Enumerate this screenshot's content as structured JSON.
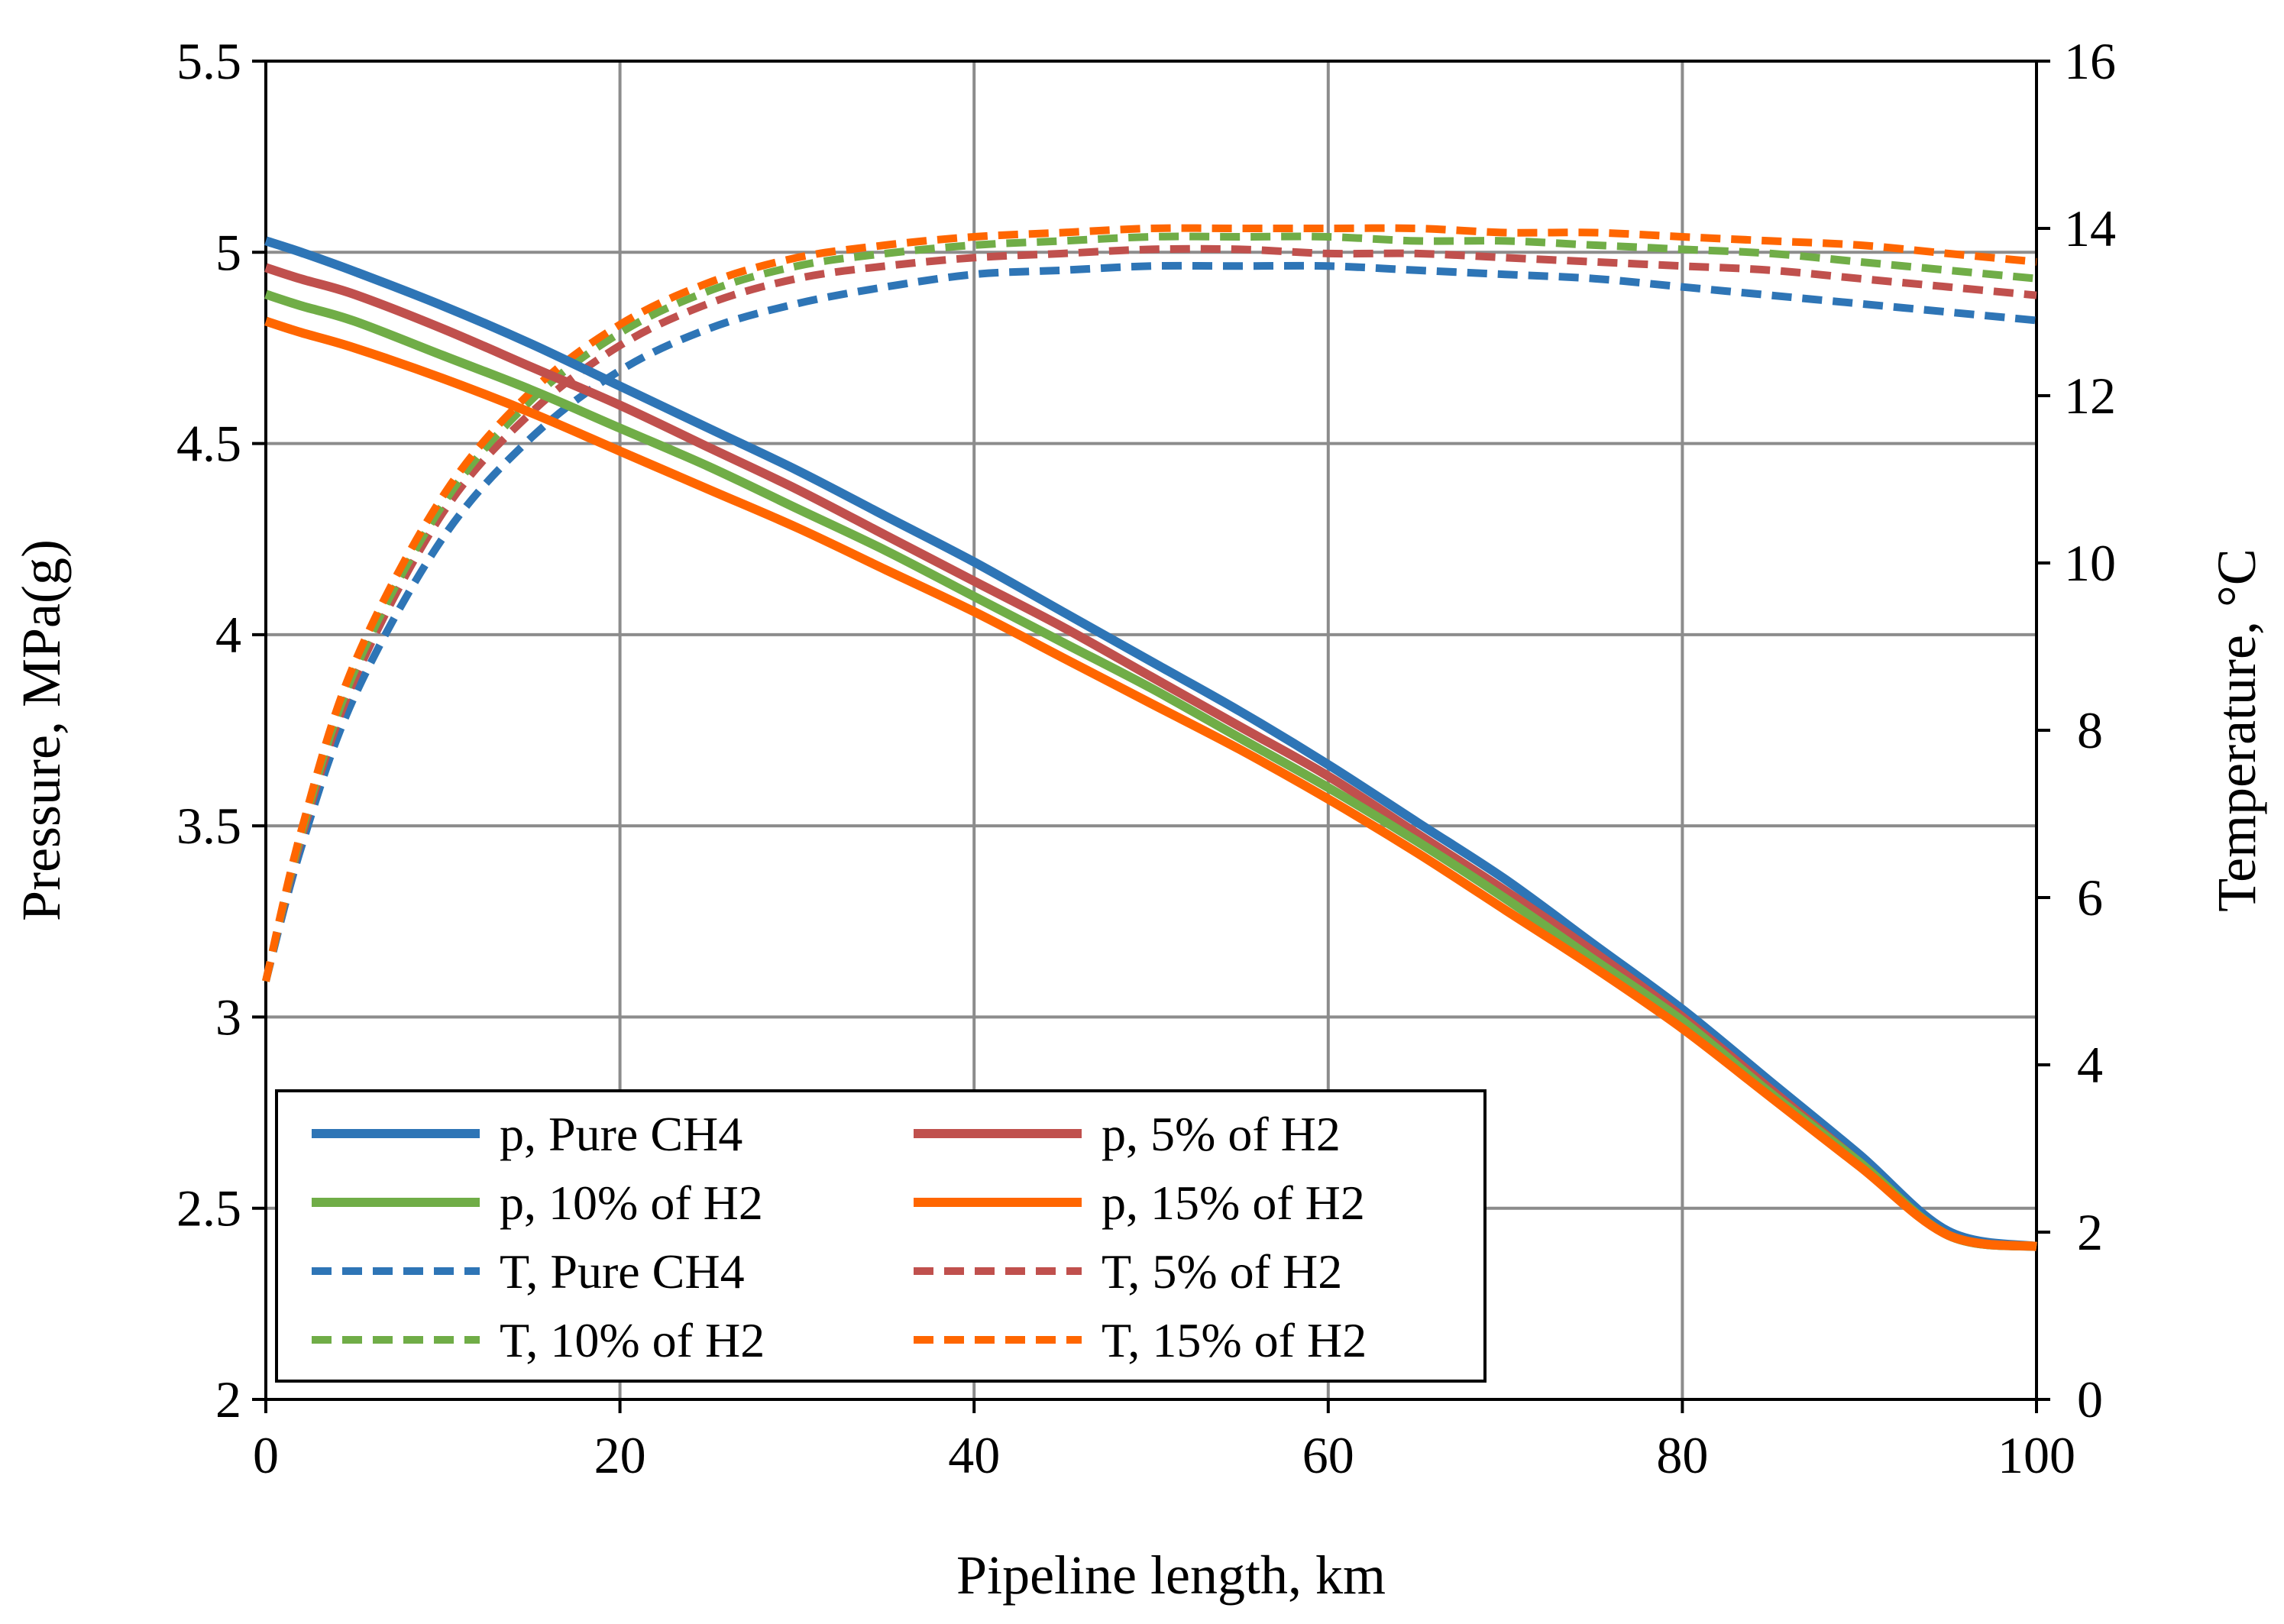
{
  "chart_data": {
    "type": "line",
    "title": "",
    "xlabel": "Pipeline length, km",
    "ylabel": "Pressure, MPa(g)",
    "y2label": "Temperature, °C",
    "xlim": [
      0,
      100
    ],
    "ylim": [
      2,
      5.5
    ],
    "y2lim": [
      0,
      16
    ],
    "grid": true,
    "legend_position": "bottom-left",
    "x_ticks": [
      "0",
      "20",
      "40",
      "60",
      "80",
      "100"
    ],
    "y_ticks": [
      "2",
      "2.5",
      "3",
      "3.5",
      "4",
      "4.5",
      "5",
      "5.5"
    ],
    "y2_ticks": [
      "0",
      "2",
      "4",
      "6",
      "8",
      "10",
      "12",
      "14",
      "16"
    ],
    "x": [
      0,
      2,
      5,
      10,
      15,
      20,
      25,
      30,
      35,
      40,
      45,
      50,
      55,
      60,
      65,
      70,
      75,
      80,
      85,
      90,
      95,
      100
    ],
    "series": [
      {
        "name": "p, Pure CH4",
        "axis": "left",
        "style": "solid",
        "color": "#2e75b6",
        "values": [
          5.03,
          5.0,
          4.95,
          4.86,
          4.76,
          4.65,
          4.54,
          4.43,
          4.31,
          4.19,
          4.06,
          3.93,
          3.8,
          3.66,
          3.51,
          3.36,
          3.19,
          3.02,
          2.83,
          2.64,
          2.44,
          2.4
        ]
      },
      {
        "name": "p, 5% of H2",
        "axis": "left",
        "style": "solid",
        "color": "#c0504d",
        "values": [
          4.96,
          4.93,
          4.89,
          4.8,
          4.7,
          4.6,
          4.49,
          4.38,
          4.26,
          4.14,
          4.02,
          3.89,
          3.76,
          3.63,
          3.48,
          3.33,
          3.17,
          3.0,
          2.81,
          2.62,
          2.43,
          2.4
        ]
      },
      {
        "name": "p, 10% of H2",
        "axis": "left",
        "style": "solid",
        "color": "#70ad47",
        "values": [
          4.89,
          4.86,
          4.82,
          4.73,
          4.64,
          4.54,
          4.44,
          4.33,
          4.22,
          4.1,
          3.98,
          3.86,
          3.73,
          3.6,
          3.46,
          3.31,
          3.15,
          2.99,
          2.8,
          2.62,
          2.43,
          2.4
        ]
      },
      {
        "name": "p, 15% of H2",
        "axis": "left",
        "style": "solid",
        "color": "#ff6600",
        "values": [
          4.82,
          4.79,
          4.75,
          4.67,
          4.58,
          4.48,
          4.38,
          4.28,
          4.17,
          4.06,
          3.94,
          3.82,
          3.7,
          3.57,
          3.43,
          3.28,
          3.13,
          2.97,
          2.79,
          2.61,
          2.43,
          2.4
        ]
      },
      {
        "name": "T, Pure CH4",
        "axis": "right",
        "style": "dashed",
        "color": "#2e75b6",
        "values": [
          5.0,
          6.6,
          8.4,
          10.3,
          11.5,
          12.3,
          12.8,
          13.1,
          13.3,
          13.45,
          13.5,
          13.55,
          13.55,
          13.55,
          13.5,
          13.45,
          13.4,
          13.3,
          13.2,
          13.1,
          13.0,
          12.9
        ]
      },
      {
        "name": "T, 5% of H2",
        "axis": "right",
        "style": "dashed",
        "color": "#c0504d",
        "values": [
          5.0,
          6.7,
          8.6,
          10.6,
          11.8,
          12.6,
          13.1,
          13.4,
          13.55,
          13.65,
          13.7,
          13.75,
          13.75,
          13.7,
          13.7,
          13.65,
          13.6,
          13.55,
          13.5,
          13.4,
          13.3,
          13.2
        ]
      },
      {
        "name": "T, 10% of H2",
        "axis": "right",
        "style": "dashed",
        "color": "#70ad47",
        "values": [
          5.0,
          6.75,
          8.7,
          10.7,
          11.95,
          12.75,
          13.25,
          13.55,
          13.7,
          13.8,
          13.85,
          13.9,
          13.9,
          13.9,
          13.85,
          13.85,
          13.8,
          13.75,
          13.7,
          13.6,
          13.5,
          13.4
        ]
      },
      {
        "name": "T, 15% of H2",
        "axis": "right",
        "style": "dashed",
        "color": "#ff6600",
        "values": [
          5.0,
          6.8,
          8.8,
          10.8,
          12.05,
          12.85,
          13.35,
          13.65,
          13.8,
          13.9,
          13.95,
          14.0,
          14.0,
          14.0,
          14.0,
          13.95,
          13.95,
          13.9,
          13.85,
          13.8,
          13.7,
          13.6
        ]
      }
    ]
  }
}
